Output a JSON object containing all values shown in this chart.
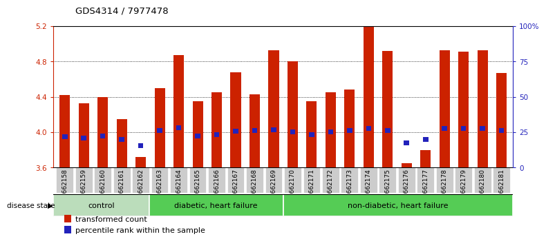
{
  "title": "GDS4314 / 7977478",
  "samples": [
    "GSM662158",
    "GSM662159",
    "GSM662160",
    "GSM662161",
    "GSM662162",
    "GSM662163",
    "GSM662164",
    "GSM662165",
    "GSM662166",
    "GSM662167",
    "GSM662168",
    "GSM662169",
    "GSM662170",
    "GSM662171",
    "GSM662172",
    "GSM662173",
    "GSM662174",
    "GSM662175",
    "GSM662176",
    "GSM662177",
    "GSM662178",
    "GSM662179",
    "GSM662180",
    "GSM662181"
  ],
  "red_values": [
    4.42,
    4.33,
    4.4,
    4.15,
    3.72,
    4.5,
    4.87,
    4.35,
    4.45,
    4.68,
    4.43,
    4.93,
    4.8,
    4.35,
    4.45,
    4.48,
    5.21,
    4.92,
    3.65,
    3.8,
    4.93,
    4.91,
    4.93,
    4.67
  ],
  "blue_values": [
    3.95,
    3.93,
    3.96,
    3.92,
    3.85,
    4.02,
    4.05,
    3.96,
    3.97,
    4.01,
    4.02,
    4.03,
    4.0,
    3.97,
    4.0,
    4.02,
    4.04,
    4.02,
    3.88,
    3.92,
    4.04,
    4.04,
    4.04,
    4.02
  ],
  "ylim": [
    3.6,
    5.2
  ],
  "yticks_left": [
    3.6,
    4.0,
    4.4,
    4.8,
    5.2
  ],
  "yticks_right": [
    0,
    25,
    50,
    75,
    100
  ],
  "bar_width": 0.55,
  "bar_color": "#cc2200",
  "blue_color": "#2222bb",
  "groups": [
    {
      "label": "control",
      "start": 0,
      "end": 5,
      "color": "#bbddbb"
    },
    {
      "label": "diabetic, heart failure",
      "start": 5,
      "end": 12,
      "color": "#55cc55"
    },
    {
      "label": "non-diabetic, heart failure",
      "start": 12,
      "end": 24,
      "color": "#55cc55"
    }
  ],
  "legend_red": "transformed count",
  "legend_blue": "percentile rank within the sample",
  "disease_state_label": "disease state"
}
